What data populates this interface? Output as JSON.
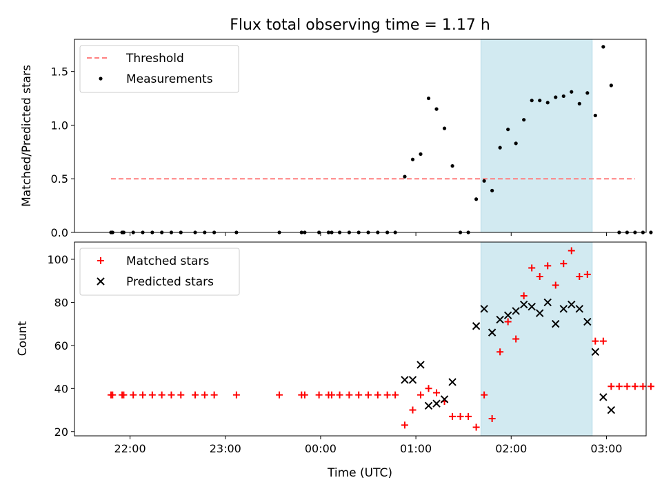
{
  "chart_data": [
    {
      "type": "scatter",
      "title": "Flux total observing time = 1.17 h",
      "xlabel": "",
      "ylabel": "Matched/Predicted stars",
      "ylim": [
        0,
        1.8
      ],
      "yticks": [
        "0.0",
        "0.5",
        "1.0",
        "1.5"
      ],
      "legend": {
        "placement": "top-left",
        "entries": [
          "Threshold",
          "Measurements"
        ]
      },
      "threshold": {
        "name": "Threshold",
        "value": 0.5,
        "x_range": [
          "21:48",
          "03:18"
        ],
        "color": "#ff7f7f",
        "style": "dashed"
      },
      "shaded_interval": {
        "start": "01:41",
        "end": "02:51",
        "color": "#add8e6"
      },
      "series": [
        {
          "name": "Measurements",
          "color": "#000000",
          "points": [
            [
              "21:48",
              0
            ],
            [
              "21:49",
              0
            ],
            [
              "21:55",
              0
            ],
            [
              "21:56",
              0
            ],
            [
              "22:02",
              0
            ],
            [
              "22:08",
              0
            ],
            [
              "22:14",
              0
            ],
            [
              "22:20",
              0
            ],
            [
              "22:26",
              0
            ],
            [
              "22:32",
              0
            ],
            [
              "22:41",
              0
            ],
            [
              "22:47",
              0
            ],
            [
              "22:53",
              0
            ],
            [
              "23:07",
              0
            ],
            [
              "23:34",
              0
            ],
            [
              "23:48",
              0
            ],
            [
              "23:50",
              0
            ],
            [
              "23:59",
              0
            ],
            [
              "00:05",
              0
            ],
            [
              "00:07",
              0
            ],
            [
              "00:12",
              0
            ],
            [
              "00:18",
              0
            ],
            [
              "00:24",
              0
            ],
            [
              "00:30",
              0
            ],
            [
              "00:36",
              0
            ],
            [
              "00:42",
              0
            ],
            [
              "00:47",
              0
            ],
            [
              "00:53",
              0.52
            ],
            [
              "00:58",
              0.68
            ],
            [
              "01:03",
              0.73
            ],
            [
              "01:08",
              1.25
            ],
            [
              "01:13",
              1.15
            ],
            [
              "01:18",
              0.97
            ],
            [
              "01:23",
              0.62
            ],
            [
              "01:28",
              0
            ],
            [
              "01:33",
              0
            ],
            [
              "01:38",
              0.31
            ],
            [
              "01:43",
              0.48
            ],
            [
              "01:48",
              0.39
            ],
            [
              "01:53",
              0.79
            ],
            [
              "01:58",
              0.96
            ],
            [
              "02:03",
              0.83
            ],
            [
              "02:08",
              1.05
            ],
            [
              "02:13",
              1.23
            ],
            [
              "02:18",
              1.23
            ],
            [
              "02:23",
              1.21
            ],
            [
              "02:28",
              1.26
            ],
            [
              "02:33",
              1.27
            ],
            [
              "02:38",
              1.31
            ],
            [
              "02:43",
              1.2
            ],
            [
              "02:48",
              1.3
            ],
            [
              "02:53",
              1.09
            ],
            [
              "02:58",
              1.73
            ],
            [
              "03:03",
              1.37
            ],
            [
              "03:08",
              0
            ],
            [
              "03:13",
              0
            ],
            [
              "03:18",
              0
            ],
            [
              "03:23",
              0
            ],
            [
              "03:28",
              0
            ]
          ]
        }
      ]
    },
    {
      "type": "scatter",
      "title": "",
      "xlabel": "Time (UTC)",
      "ylabel": "Count",
      "ylim": [
        18,
        108
      ],
      "yticks": [
        "20",
        "40",
        "60",
        "80",
        "100"
      ],
      "xticks": [
        "22:00",
        "23:00",
        "00:00",
        "01:00",
        "02:00",
        "03:00"
      ],
      "legend": {
        "placement": "top-left",
        "entries": [
          "Matched stars",
          "Predicted stars"
        ]
      },
      "shaded_interval": {
        "start": "01:41",
        "end": "02:51",
        "color": "#add8e6"
      },
      "series": [
        {
          "name": "Matched stars",
          "marker": "plus",
          "color": "#ff0000",
          "points": [
            [
              "21:48",
              37
            ],
            [
              "21:49",
              37
            ],
            [
              "21:55",
              37
            ],
            [
              "21:56",
              37
            ],
            [
              "22:02",
              37
            ],
            [
              "22:08",
              37
            ],
            [
              "22:14",
              37
            ],
            [
              "22:20",
              37
            ],
            [
              "22:26",
              37
            ],
            [
              "22:32",
              37
            ],
            [
              "22:41",
              37
            ],
            [
              "22:47",
              37
            ],
            [
              "22:53",
              37
            ],
            [
              "23:07",
              37
            ],
            [
              "23:34",
              37
            ],
            [
              "23:48",
              37
            ],
            [
              "23:50",
              37
            ],
            [
              "23:59",
              37
            ],
            [
              "00:05",
              37
            ],
            [
              "00:07",
              37
            ],
            [
              "00:12",
              37
            ],
            [
              "00:18",
              37
            ],
            [
              "00:24",
              37
            ],
            [
              "00:30",
              37
            ],
            [
              "00:36",
              37
            ],
            [
              "00:42",
              37
            ],
            [
              "00:47",
              37
            ],
            [
              "00:53",
              23
            ],
            [
              "00:58",
              30
            ],
            [
              "01:03",
              37
            ],
            [
              "01:08",
              40
            ],
            [
              "01:13",
              38
            ],
            [
              "01:18",
              34
            ],
            [
              "01:23",
              27
            ],
            [
              "01:28",
              27
            ],
            [
              "01:33",
              27
            ],
            [
              "01:38",
              22
            ],
            [
              "01:43",
              37
            ],
            [
              "01:48",
              26
            ],
            [
              "01:53",
              57
            ],
            [
              "01:58",
              71
            ],
            [
              "02:03",
              63
            ],
            [
              "02:08",
              83
            ],
            [
              "02:13",
              96
            ],
            [
              "02:18",
              92
            ],
            [
              "02:23",
              97
            ],
            [
              "02:28",
              88
            ],
            [
              "02:33",
              98
            ],
            [
              "02:38",
              104
            ],
            [
              "02:43",
              92
            ],
            [
              "02:48",
              93
            ],
            [
              "02:53",
              62
            ],
            [
              "02:58",
              62
            ],
            [
              "03:03",
              41
            ],
            [
              "03:08",
              41
            ],
            [
              "03:13",
              41
            ],
            [
              "03:18",
              41
            ],
            [
              "03:23",
              41
            ],
            [
              "03:28",
              41
            ]
          ]
        },
        {
          "name": "Predicted stars",
          "marker": "x",
          "color": "#000000",
          "points": [
            [
              "00:53",
              44
            ],
            [
              "00:58",
              44
            ],
            [
              "01:03",
              51
            ],
            [
              "01:08",
              32
            ],
            [
              "01:13",
              33
            ],
            [
              "01:18",
              35
            ],
            [
              "01:23",
              43
            ],
            [
              "01:38",
              69
            ],
            [
              "01:43",
              77
            ],
            [
              "01:48",
              66
            ],
            [
              "01:53",
              72
            ],
            [
              "01:58",
              74
            ],
            [
              "02:03",
              76
            ],
            [
              "02:08",
              79
            ],
            [
              "02:13",
              78
            ],
            [
              "02:18",
              75
            ],
            [
              "02:23",
              80
            ],
            [
              "02:28",
              70
            ],
            [
              "02:33",
              77
            ],
            [
              "02:38",
              79
            ],
            [
              "02:43",
              77
            ],
            [
              "02:48",
              71
            ],
            [
              "02:53",
              57
            ],
            [
              "02:58",
              36
            ],
            [
              "03:03",
              30
            ]
          ]
        }
      ]
    }
  ]
}
